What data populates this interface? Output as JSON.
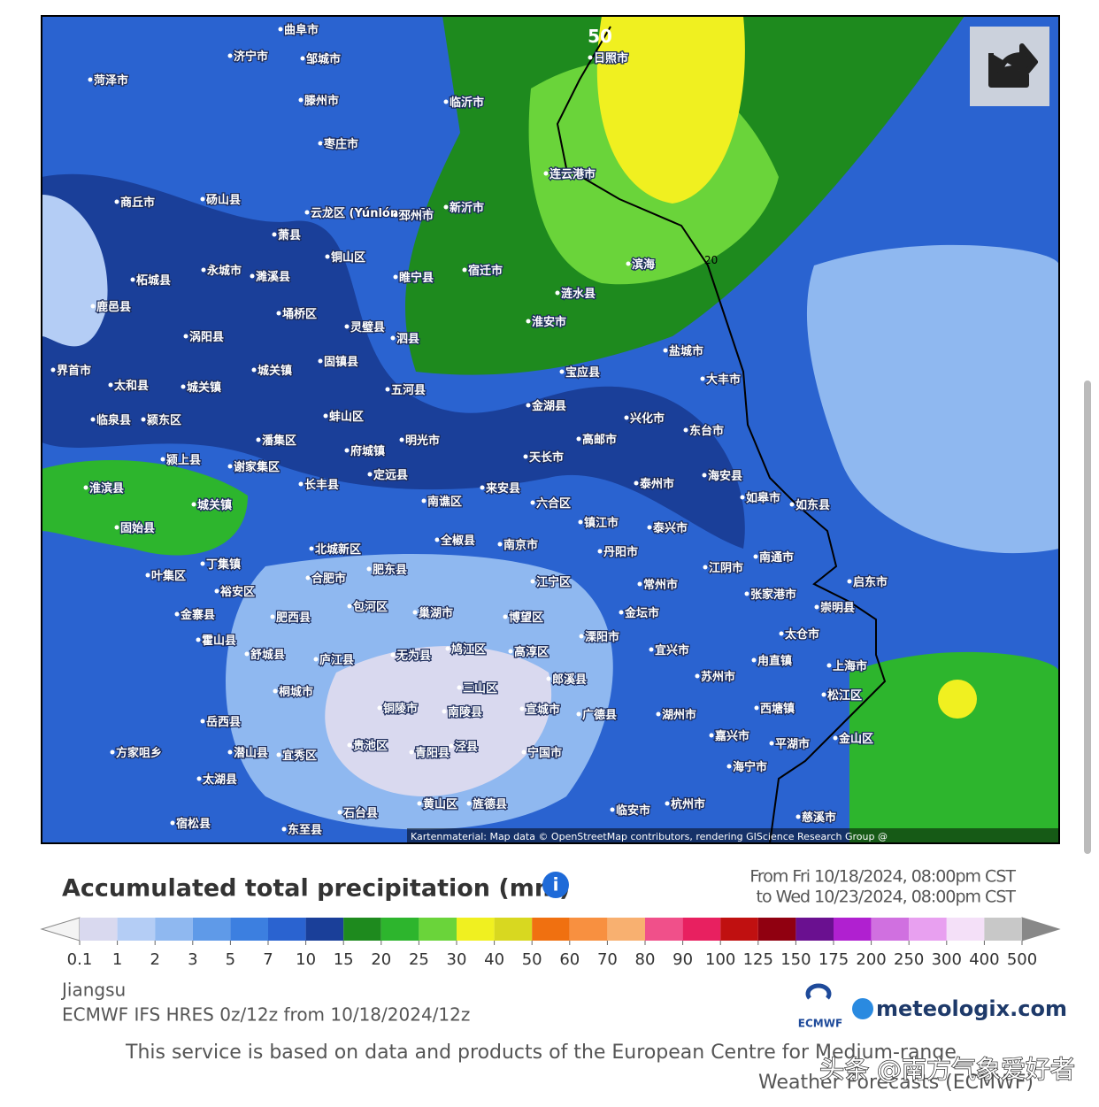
{
  "map": {
    "contour_labels": [
      "50",
      "20"
    ],
    "attribution": "Kartenmaterial: Map data © OpenStreetMap contributors, rendering GIScience Research Group @",
    "labels": [
      "曲阜市",
      "济宁市",
      "邹城市",
      "菏泽市",
      "临沂市",
      "滕州市",
      "日照市",
      "枣庄市",
      "连云港市",
      "砀山县",
      "商丘市",
      "云龙区 (Yúnlóng qū)",
      "邳州市",
      "新沂市",
      "萧县",
      "铜山区",
      "宿迁市",
      "滨海",
      "永城市",
      "濉溪县",
      "睢宁县",
      "涟水县",
      "柘城县",
      "鹿邑县",
      "埇桥区",
      "灵璧县",
      "淮安市",
      "泗县",
      "涡阳县",
      "盐城市",
      "固镇县",
      "宝应县",
      "界首市",
      "城关镇",
      "太和县",
      "大丰市",
      "五河县",
      "城关镇",
      "金湖县",
      "蚌山区",
      "兴化市",
      "临泉县",
      "颍东区",
      "东台市",
      "明光市",
      "潘集区",
      "高邮市",
      "府城镇",
      "颍上县",
      "天长市",
      "谢家集区",
      "定远县",
      "海安县",
      "泰州市",
      "长丰县",
      "淮滨县",
      "来安县",
      "城关镇",
      "南谯区",
      "六合区",
      "如皋市",
      "如东县",
      "镇江市",
      "固始县",
      "泰兴市",
      "北城新区",
      "全椒县",
      "南京市",
      "丹阳市",
      "南通市",
      "肥东县",
      "江阴市",
      "叶集区",
      "丁集镇",
      "合肥市",
      "江宁区",
      "常州市",
      "启东市",
      "张家港市",
      "裕安区",
      "包河区",
      "巢湖市",
      "金坛市",
      "崇明县",
      "金寨县",
      "肥西县",
      "博望区",
      "太仓市",
      "霍山县",
      "溧阳市",
      "庐江县",
      "无为县",
      "鸠江区",
      "高淳区",
      "宜兴市",
      "舒城县",
      "甪直镇",
      "上海市",
      "苏州市",
      "桐城市",
      "三山区",
      "郎溪县",
      "松江区",
      "岳西县",
      "铜陵市",
      "南陵县",
      "宣城市",
      "广德县",
      "湖州市",
      "西塘镇",
      "嘉兴市",
      "平湖市",
      "金山区",
      "潜山县",
      "贵池区",
      "青阳县",
      "泾县",
      "宁国市",
      "方家咀乡",
      "宜秀区",
      "海宁市",
      "太湖县",
      "石台县",
      "黄山区",
      "旌德县",
      "临安市",
      "杭州市",
      "慈溪市",
      "宿松县",
      "东至县"
    ]
  },
  "header": {
    "title": "Accumulated total precipitation (mm)",
    "period_from": "From Fri 10/18/2024, 08:00pm CST",
    "period_to": "to Wed 10/23/2024, 08:00pm CST"
  },
  "legend": {
    "labels": [
      0.1,
      1,
      2,
      3,
      5,
      7,
      10,
      15,
      20,
      25,
      30,
      40,
      50,
      60,
      70,
      80,
      90,
      100,
      125,
      150,
      175,
      200,
      250,
      300,
      400,
      500
    ],
    "colors": [
      "#d9d9ef",
      "#b4cdf5",
      "#8fb8f0",
      "#5f9ae8",
      "#3c7fe0",
      "#2a63d0",
      "#1a3f99",
      "#1e8a1e",
      "#2db52d",
      "#6ad43a",
      "#f0f020",
      "#d8d820",
      "#f07010",
      "#f89040",
      "#f8b070",
      "#f0508a",
      "#e82060",
      "#c01010",
      "#900010",
      "#6a1090",
      "#b020d0",
      "#d070e0",
      "#e8a0f0",
      "#f4e0f8",
      "#c8c8c8"
    ]
  },
  "footer": {
    "region": "Jiangsu",
    "model": "ECMWF IFS HRES 0z/12z from 10/18/2024/12z",
    "ecmwf": "ECMWF",
    "brand": "meteologix.com",
    "notice_1": "This service is based on data and products of the European Centre for Medium-range",
    "notice_2": "Weather Forecasts (ECMWF)",
    "watermark": "头条 @南方气象爱好者"
  }
}
